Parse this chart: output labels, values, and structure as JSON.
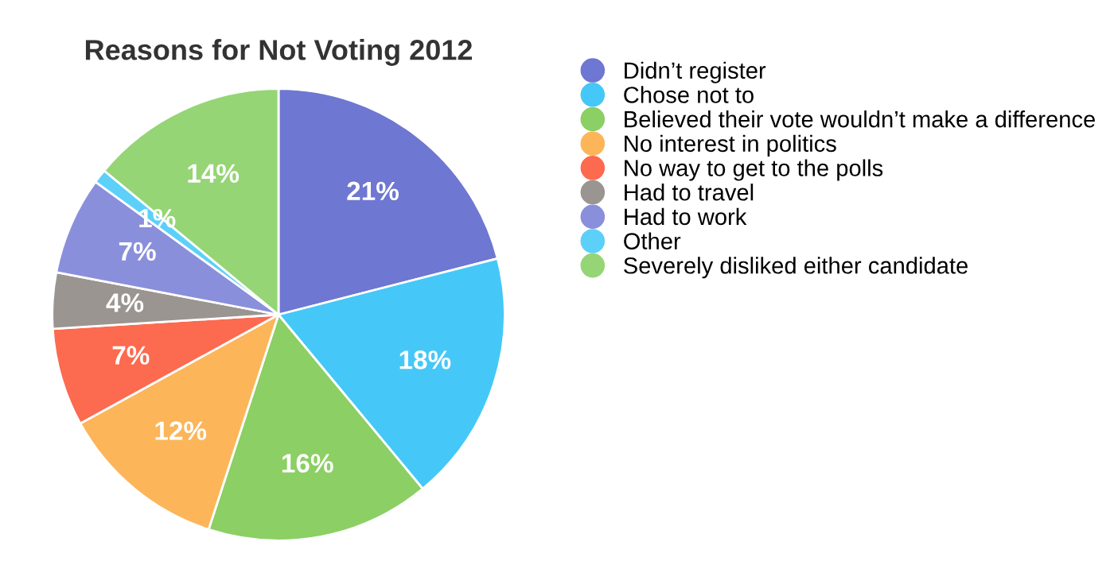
{
  "chart_data": {
    "type": "pie",
    "title": "Reasons for Not Voting 2012",
    "categories": [
      "Didn’t register",
      "Chose not to",
      "Believed their vote wouldn’t make a difference",
      "No interest in politics",
      "No way to get to the polls",
      "Had to travel",
      "Had to work",
      "Other",
      "Severely disliked either candidate"
    ],
    "values": [
      21,
      18,
      16,
      12,
      7,
      4,
      7,
      1,
      14
    ],
    "value_labels": [
      "21%",
      "18%",
      "16%",
      "12%",
      "7%",
      "4%",
      "7%",
      "1%",
      "14%"
    ],
    "colors": [
      "#6e77d1",
      "#45c8f7",
      "#8ccf64",
      "#fdb55a",
      "#fc6a4f",
      "#9a9590",
      "#8a8fdb",
      "#5cd0f9",
      "#95d575"
    ],
    "legend": "right"
  }
}
